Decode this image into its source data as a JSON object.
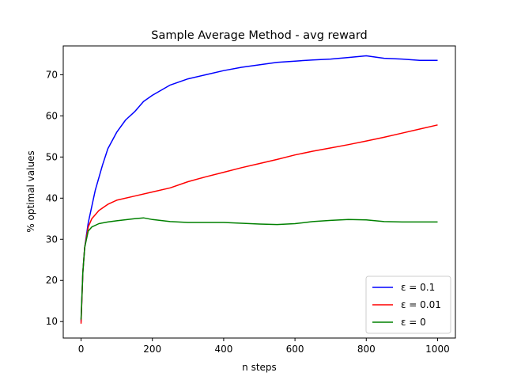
{
  "chart_data": {
    "type": "line",
    "title": "Sample Average Method - avg reward",
    "xlabel": "n steps",
    "ylabel": "% optimal values",
    "xlim": [
      -50,
      1050
    ],
    "ylim": [
      6,
      77
    ],
    "xticks": [
      0,
      200,
      400,
      600,
      800,
      1000
    ],
    "yticks": [
      10,
      20,
      30,
      40,
      50,
      60,
      70
    ],
    "grid": false,
    "legend_position": "lower-right",
    "series": [
      {
        "name": "ε = 0.1",
        "color": "#0000ff",
        "x": [
          0,
          5,
          10,
          20,
          30,
          40,
          50,
          60,
          75,
          100,
          125,
          150,
          175,
          200,
          250,
          300,
          350,
          400,
          450,
          500,
          550,
          600,
          650,
          700,
          750,
          800,
          850,
          900,
          950,
          1000
        ],
        "y": [
          10,
          22,
          28,
          34,
          38,
          42,
          45,
          48,
          52,
          56,
          59,
          61,
          63.5,
          65,
          67.5,
          69,
          70,
          71,
          71.8,
          72.4,
          73,
          73.3,
          73.6,
          73.8,
          74.2,
          74.6,
          74,
          73.8,
          73.5,
          73.5
        ]
      },
      {
        "name": "ε = 0.01",
        "color": "#ff0000",
        "x": [
          0,
          5,
          10,
          20,
          30,
          40,
          50,
          75,
          100,
          150,
          200,
          250,
          300,
          350,
          400,
          450,
          500,
          550,
          600,
          650,
          700,
          750,
          800,
          850,
          900,
          950,
          1000
        ],
        "y": [
          9.5,
          22,
          28,
          33,
          35,
          36,
          37,
          38.5,
          39.5,
          40.5,
          41.5,
          42.5,
          44,
          45.2,
          46.3,
          47.4,
          48.4,
          49.4,
          50.5,
          51.4,
          52.2,
          53,
          53.9,
          54.8,
          55.8,
          56.8,
          57.8
        ]
      },
      {
        "name": "ε = 0",
        "color": "#008000",
        "x": [
          0,
          5,
          10,
          20,
          30,
          50,
          75,
          100,
          150,
          175,
          200,
          250,
          300,
          350,
          400,
          450,
          500,
          550,
          600,
          650,
          700,
          750,
          800,
          850,
          900,
          950,
          1000
        ],
        "y": [
          10.5,
          22,
          28,
          32,
          33,
          33.8,
          34.2,
          34.5,
          35,
          35.2,
          34.8,
          34.3,
          34.1,
          34.1,
          34.1,
          33.9,
          33.7,
          33.6,
          33.8,
          34.3,
          34.6,
          34.8,
          34.7,
          34.3,
          34.2,
          34.2,
          34.2
        ]
      }
    ]
  }
}
